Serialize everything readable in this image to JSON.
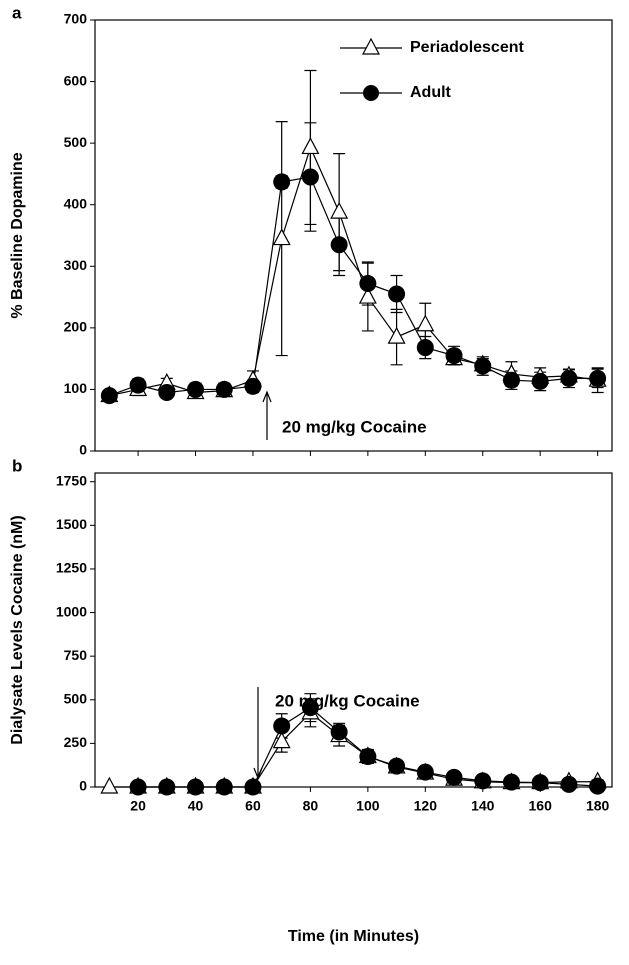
{
  "chart_data": [
    {
      "type": "line",
      "panel_label": "a",
      "y_label": "% Baseline Dopamine",
      "annotation": "20 mg/kg Cocaine",
      "x": [
        10,
        20,
        30,
        40,
        50,
        60,
        70,
        80,
        90,
        100,
        110,
        120,
        130,
        140,
        150,
        160,
        170,
        180
      ],
      "xlim": [
        5,
        185
      ],
      "ylim": [
        0,
        700
      ],
      "yticks": [
        0,
        100,
        200,
        300,
        400,
        500,
        600,
        700
      ],
      "legend": "top-right",
      "series": [
        {
          "name": "Periadolescent",
          "color": "#000000",
          "marker": "triangle-open",
          "values": [
            90,
            100,
            110,
            95,
            98,
            115,
            345,
            493,
            388,
            250,
            185,
            205,
            150,
            140,
            125,
            120,
            122,
            115
          ],
          "errors": [
            8,
            10,
            8,
            8,
            8,
            15,
            190,
            125,
            95,
            55,
            45,
            35,
            10,
            10,
            20,
            15,
            10,
            20
          ]
        },
        {
          "name": "Adult",
          "color": "#000000",
          "marker": "circle",
          "values": [
            90,
            107,
            95,
            100,
            100,
            105,
            437,
            445,
            335,
            272,
            255,
            168,
            155,
            138,
            115,
            113,
            118,
            118
          ],
          "errors": [
            8,
            10,
            8,
            10,
            10,
            10,
            10,
            88,
            50,
            35,
            30,
            18,
            15,
            15,
            15,
            15,
            15,
            15
          ]
        }
      ]
    },
    {
      "type": "line",
      "panel_label": "b",
      "y_label": "Dialysate Levels Cocaine (nM)",
      "x_label": "Time (in Minutes)",
      "annotation": "20 mg/kg Cocaine",
      "x": [
        10,
        20,
        30,
        40,
        50,
        60,
        70,
        80,
        90,
        100,
        110,
        120,
        130,
        140,
        150,
        160,
        170,
        180
      ],
      "xlim": [
        5,
        185
      ],
      "xticks": [
        20,
        40,
        60,
        80,
        100,
        120,
        140,
        160,
        180
      ],
      "ylim": [
        0,
        1800
      ],
      "yticks": [
        0,
        250,
        500,
        750,
        1000,
        1250,
        1500,
        1750
      ],
      "series": [
        {
          "name": "Periadolescent",
          "color": "#000000",
          "marker": "triangle-open",
          "values": [
            0,
            0,
            0,
            0,
            0,
            0,
            260,
            425,
            295,
            175,
            115,
            80,
            45,
            30,
            25,
            25,
            30,
            30
          ],
          "errors": [
            null,
            null,
            null,
            null,
            null,
            null,
            60,
            80,
            60,
            35,
            20,
            15,
            10,
            10,
            10,
            10,
            10,
            10
          ]
        },
        {
          "name": "Adult",
          "color": "#000000",
          "marker": "circle",
          "values": [
            null,
            0,
            0,
            0,
            0,
            0,
            350,
            455,
            315,
            175,
            120,
            85,
            55,
            35,
            28,
            25,
            15,
            5
          ],
          "errors": [
            null,
            null,
            null,
            null,
            null,
            null,
            70,
            80,
            50,
            40,
            20,
            15,
            10,
            10,
            10,
            10,
            10,
            10
          ]
        }
      ]
    }
  ]
}
